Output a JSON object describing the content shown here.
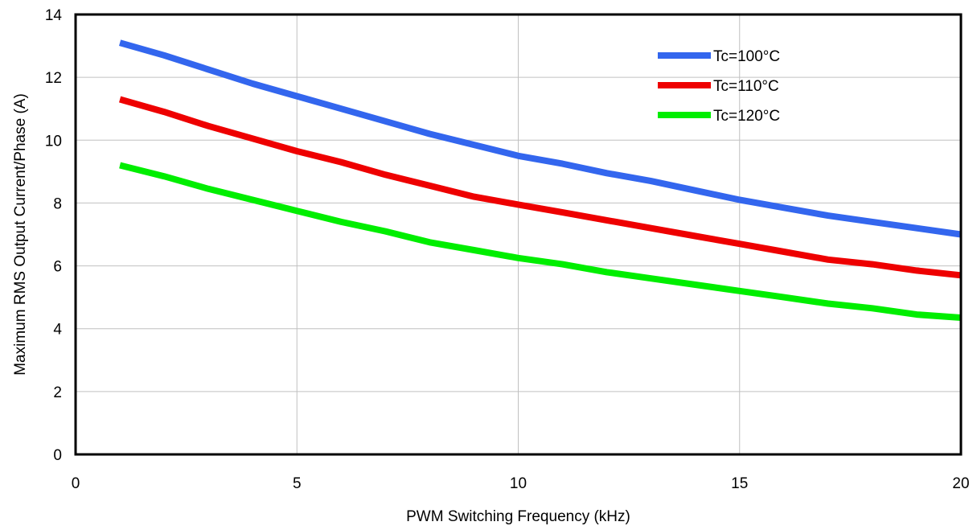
{
  "chart_data": {
    "type": "line",
    "xlabel": "PWM Switching Frequency (kHz)",
    "ylabel": "Maximum RMS Output Current/Phase (A)",
    "xlim": [
      0,
      20
    ],
    "ylim": [
      0,
      14
    ],
    "xticks": [
      0,
      5,
      10,
      15,
      20
    ],
    "yticks": [
      0,
      2,
      4,
      6,
      8,
      10,
      12,
      14
    ],
    "grid": true,
    "legend_position": "top-right",
    "series": [
      {
        "name": "Tc=100°C",
        "color": "#3366ee",
        "x": [
          1,
          2,
          3,
          4,
          5,
          6,
          7,
          8,
          9,
          10,
          11,
          12,
          13,
          14,
          15,
          16,
          17,
          18,
          19,
          20
        ],
        "y": [
          13.1,
          12.7,
          12.25,
          11.8,
          11.4,
          11.0,
          10.6,
          10.2,
          9.85,
          9.5,
          9.25,
          8.95,
          8.7,
          8.4,
          8.1,
          7.85,
          7.6,
          7.4,
          7.2,
          7.0
        ]
      },
      {
        "name": "Tc=110°C",
        "color": "#ee0000",
        "x": [
          1,
          2,
          3,
          4,
          5,
          6,
          7,
          8,
          9,
          10,
          11,
          12,
          13,
          14,
          15,
          16,
          17,
          18,
          19,
          20
        ],
        "y": [
          11.3,
          10.9,
          10.45,
          10.05,
          9.65,
          9.3,
          8.9,
          8.55,
          8.2,
          7.95,
          7.7,
          7.45,
          7.2,
          6.95,
          6.7,
          6.45,
          6.2,
          6.05,
          5.85,
          5.7
        ]
      },
      {
        "name": "Tc=120°C",
        "color": "#00ee00",
        "x": [
          1,
          2,
          3,
          4,
          5,
          6,
          7,
          8,
          9,
          10,
          11,
          12,
          13,
          14,
          15,
          16,
          17,
          18,
          19,
          20
        ],
        "y": [
          9.2,
          8.85,
          8.45,
          8.1,
          7.75,
          7.4,
          7.1,
          6.75,
          6.5,
          6.25,
          6.05,
          5.8,
          5.6,
          5.4,
          5.2,
          5.0,
          4.8,
          4.65,
          4.45,
          4.35
        ]
      }
    ]
  }
}
